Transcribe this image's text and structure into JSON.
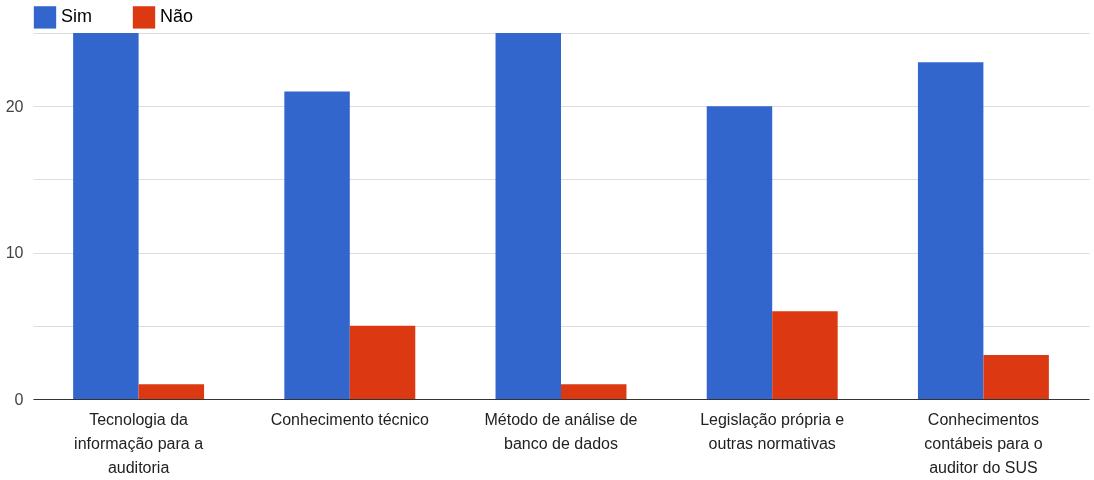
{
  "chart_data": {
    "type": "bar",
    "categories": [
      "Tecnologia da informação para a auditoria",
      "Conhecimento técnico",
      "Método de análise de banco de dados",
      "Legislação própria e outras normativas",
      "Conhecimentos contábeis para o auditor do SUS"
    ],
    "series": [
      {
        "name": "Sim",
        "color": "#3366cc",
        "values": [
          25,
          21,
          25,
          20,
          23
        ]
      },
      {
        "name": "Não",
        "color": "#dc3912",
        "values": [
          1,
          5,
          1,
          6,
          3
        ]
      }
    ],
    "ylim": [
      0,
      25
    ],
    "yticks": [
      0,
      {
        "value": 5,
        "label": null
      },
      10,
      {
        "value": 15,
        "label": null
      },
      20,
      {
        "value": 25,
        "label": null
      }
    ],
    "grid": "y",
    "legend": "top left"
  }
}
